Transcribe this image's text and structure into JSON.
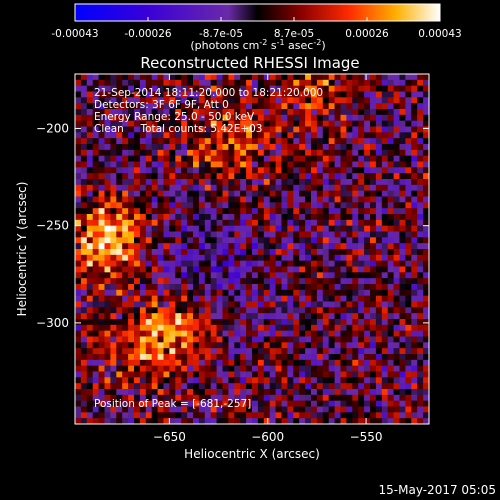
{
  "chart_data": {
    "type": "heatmap",
    "title": "Reconstructed RHESSI Image",
    "xlabel": "Heliocentric X (arcsec)",
    "ylabel": "Heliocentric Y (arcsec)",
    "xlim": [
      -698,
      -518
    ],
    "ylim": [
      -352,
      -172
    ],
    "xticks": [
      -650,
      -600,
      -550
    ],
    "yticks": [
      -200,
      -250,
      -300
    ],
    "colorbar": {
      "ticks": [
        "-0.00043",
        "-0.00026",
        "-8.7e-05",
        "8.7e-05",
        "0.00026",
        "0.00043"
      ],
      "label_main": "(photons cm",
      "label_sup1": "-2",
      "label_mid1": " s",
      "label_sup2": "-1",
      "label_mid2": " asec",
      "label_sup3": "-2",
      "label_end": ")",
      "range": [
        -0.00043,
        0.00043
      ]
    },
    "annotations": [
      "21-Sep-2014 18:11:20.000 to 18:21:20.000",
      "Detectors: 3F 6F 9F, Att 0",
      "Energy Range: 25.0 - 50.0 keV",
      "Clean     Total counts: 5.42E+03"
    ],
    "peak_label": "Position of Peak = [-681,-257]",
    "peak": [
      -681,
      -257
    ]
  },
  "footer_date": "15-May-2017 05:05"
}
